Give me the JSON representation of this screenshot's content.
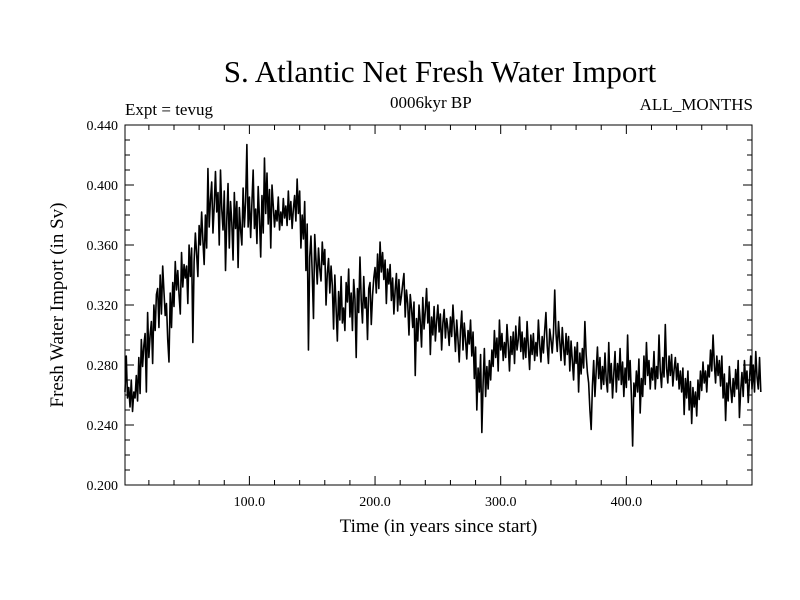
{
  "header": {
    "title": "S. Atlantic Net Fresh Water Import",
    "experiment": "Expt = tevug",
    "period": "0006kyr BP",
    "months": "ALL_MONTHS"
  },
  "chart_data": {
    "type": "line",
    "xlabel": "Time (in years since start)",
    "ylabel": "Fresh Water Import (in Sv)",
    "xlim": [
      1,
      500
    ],
    "ylim": [
      0.2,
      0.44
    ],
    "x_ticks": [
      100,
      200,
      300,
      400
    ],
    "x_tick_labels": [
      "100.0",
      "200.0",
      "300.0",
      "400.0"
    ],
    "y_ticks": [
      0.2,
      0.24,
      0.28,
      0.32,
      0.36,
      0.4,
      0.44
    ],
    "y_tick_labels": [
      "0.200",
      "0.240",
      "0.280",
      "0.320",
      "0.360",
      "0.400",
      "0.440"
    ],
    "grid": false,
    "legend": "none",
    "series": [
      {
        "x_start": 1,
        "x_step": 1,
        "values": [
          0.262,
          0.286,
          0.258,
          0.265,
          0.252,
          0.27,
          0.249,
          0.262,
          0.258,
          0.273,
          0.256,
          0.285,
          0.261,
          0.297,
          0.279,
          0.293,
          0.301,
          0.262,
          0.315,
          0.285,
          0.3,
          0.309,
          0.281,
          0.32,
          0.303,
          0.327,
          0.331,
          0.305,
          0.34,
          0.314,
          0.346,
          0.329,
          0.313,
          0.321,
          0.297,
          0.282,
          0.328,
          0.305,
          0.335,
          0.319,
          0.349,
          0.33,
          0.343,
          0.327,
          0.314,
          0.355,
          0.332,
          0.347,
          0.338,
          0.346,
          0.321,
          0.36,
          0.339,
          0.358,
          0.295,
          0.349,
          0.368,
          0.354,
          0.339,
          0.373,
          0.36,
          0.382,
          0.363,
          0.347,
          0.38,
          0.358,
          0.411,
          0.372,
          0.39,
          0.402,
          0.368,
          0.386,
          0.409,
          0.382,
          0.395,
          0.36,
          0.41,
          0.384,
          0.37,
          0.396,
          0.343,
          0.377,
          0.401,
          0.358,
          0.389,
          0.375,
          0.35,
          0.395,
          0.371,
          0.389,
          0.345,
          0.385,
          0.37,
          0.36,
          0.398,
          0.372,
          0.389,
          0.427,
          0.372,
          0.392,
          0.365,
          0.388,
          0.41,
          0.371,
          0.384,
          0.361,
          0.399,
          0.378,
          0.352,
          0.393,
          0.368,
          0.418,
          0.381,
          0.408,
          0.374,
          0.397,
          0.358,
          0.4,
          0.386,
          0.372,
          0.383,
          0.376,
          0.392,
          0.37,
          0.382,
          0.373,
          0.391,
          0.378,
          0.386,
          0.373,
          0.396,
          0.377,
          0.389,
          0.371,
          0.384,
          0.393,
          0.376,
          0.404,
          0.381,
          0.396,
          0.358,
          0.38,
          0.364,
          0.389,
          0.343,
          0.374,
          0.29,
          0.352,
          0.366,
          0.341,
          0.311,
          0.367,
          0.35,
          0.334,
          0.358,
          0.344,
          0.336,
          0.362,
          0.347,
          0.357,
          0.32,
          0.341,
          0.351,
          0.328,
          0.346,
          0.333,
          0.304,
          0.34,
          0.318,
          0.296,
          0.329,
          0.31,
          0.339,
          0.308,
          0.318,
          0.303,
          0.335,
          0.322,
          0.344,
          0.312,
          0.328,
          0.303,
          0.337,
          0.324,
          0.285,
          0.331,
          0.315,
          0.352,
          0.323,
          0.308,
          0.339,
          0.318,
          0.325,
          0.297,
          0.331,
          0.335,
          0.307,
          0.326,
          0.338,
          0.345,
          0.328,
          0.354,
          0.331,
          0.362,
          0.342,
          0.355,
          0.337,
          0.35,
          0.321,
          0.344,
          0.334,
          0.347,
          0.323,
          0.338,
          0.314,
          0.33,
          0.341,
          0.316,
          0.337,
          0.32,
          0.326,
          0.334,
          0.341,
          0.312,
          0.33,
          0.321,
          0.3,
          0.327,
          0.318,
          0.305,
          0.322,
          0.273,
          0.311,
          0.296,
          0.32,
          0.309,
          0.292,
          0.325,
          0.304,
          0.316,
          0.331,
          0.308,
          0.322,
          0.287,
          0.312,
          0.3,
          0.319,
          0.296,
          0.309,
          0.32,
          0.302,
          0.314,
          0.29,
          0.308,
          0.317,
          0.298,
          0.311,
          0.304,
          0.293,
          0.312,
          0.299,
          0.32,
          0.305,
          0.289,
          0.31,
          0.297,
          0.282,
          0.303,
          0.316,
          0.29,
          0.308,
          0.297,
          0.284,
          0.303,
          0.294,
          0.31,
          0.286,
          0.302,
          0.271,
          0.292,
          0.25,
          0.278,
          0.262,
          0.287,
          0.235,
          0.268,
          0.291,
          0.259,
          0.279,
          0.264,
          0.283,
          0.27,
          0.29,
          0.279,
          0.303,
          0.285,
          0.298,
          0.276,
          0.31,
          0.29,
          0.301,
          0.283,
          0.295,
          0.285,
          0.307,
          0.293,
          0.276,
          0.299,
          0.287,
          0.302,
          0.281,
          0.306,
          0.29,
          0.297,
          0.312,
          0.289,
          0.302,
          0.284,
          0.298,
          0.285,
          0.309,
          0.292,
          0.277,
          0.3,
          0.287,
          0.301,
          0.283,
          0.295,
          0.286,
          0.31,
          0.294,
          0.282,
          0.299,
          0.288,
          0.303,
          0.315,
          0.293,
          0.281,
          0.304,
          0.297,
          0.288,
          0.301,
          0.33,
          0.301,
          0.289,
          0.309,
          0.296,
          0.283,
          0.305,
          0.292,
          0.28,
          0.301,
          0.287,
          0.299,
          0.276,
          0.296,
          0.283,
          0.27,
          0.292,
          0.281,
          0.295,
          0.262,
          0.288,
          0.274,
          0.291,
          0.278,
          0.309,
          0.287,
          0.275,
          0.268,
          0.25,
          0.237,
          0.266,
          0.283,
          0.259,
          0.276,
          0.292,
          0.271,
          0.285,
          0.264,
          0.279,
          0.267,
          0.288,
          0.27,
          0.262,
          0.295,
          0.268,
          0.281,
          0.258,
          0.274,
          0.289,
          0.262,
          0.281,
          0.27,
          0.291,
          0.267,
          0.282,
          0.259,
          0.278,
          0.265,
          0.3,
          0.27,
          0.283,
          0.26,
          0.226,
          0.268,
          0.259,
          0.276,
          0.262,
          0.284,
          0.248,
          0.271,
          0.259,
          0.286,
          0.267,
          0.295,
          0.273,
          0.283,
          0.264,
          0.278,
          0.27,
          0.289,
          0.264,
          0.279,
          0.271,
          0.3,
          0.276,
          0.265,
          0.285,
          0.272,
          0.307,
          0.278,
          0.268,
          0.286,
          0.273,
          0.287,
          0.266,
          0.277,
          0.285,
          0.27,
          0.281,
          0.264,
          0.276,
          0.262,
          0.278,
          0.247,
          0.271,
          0.258,
          0.276,
          0.25,
          0.269,
          0.241,
          0.265,
          0.252,
          0.262,
          0.246,
          0.27,
          0.257,
          0.276,
          0.263,
          0.282,
          0.268,
          0.276,
          0.262,
          0.28,
          0.272,
          0.29,
          0.276,
          0.3,
          0.281,
          0.268,
          0.286,
          0.273,
          0.283,
          0.266,
          0.286,
          0.258,
          0.274,
          0.243,
          0.268,
          0.256,
          0.279,
          0.265,
          0.255,
          0.271,
          0.259,
          0.277,
          0.264,
          0.283,
          0.245,
          0.263,
          0.275,
          0.259,
          0.283,
          0.268,
          0.276,
          0.255,
          0.27,
          0.286,
          0.264,
          0.28,
          0.262,
          0.289,
          0.272,
          0.264,
          0.285,
          0.262
        ]
      }
    ]
  }
}
